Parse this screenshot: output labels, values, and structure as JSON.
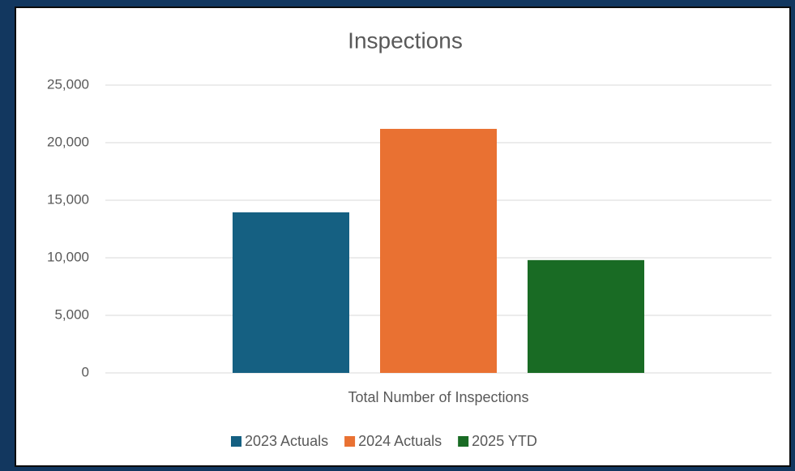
{
  "chart_data": {
    "type": "bar",
    "title": "Inspections",
    "categories": [
      "Total Number of Inspections"
    ],
    "series": [
      {
        "name": "2023 Actuals",
        "color": "#156082",
        "values": [
          13950
        ]
      },
      {
        "name": "2024 Actuals",
        "color": "#e97132",
        "values": [
          21200
        ]
      },
      {
        "name": "2025 YTD",
        "color": "#196b24",
        "values": [
          9800
        ]
      }
    ],
    "ylim": [
      0,
      25000
    ],
    "yticks": [
      0,
      {
        "value": 5000,
        "label": "5,000"
      },
      {
        "value": 10000,
        "label": "10,000"
      },
      {
        "value": 15000,
        "label": "15,000"
      },
      {
        "value": 20000,
        "label": "20,000"
      },
      {
        "value": 25000,
        "label": "25,000"
      }
    ],
    "grid": true,
    "legend": "bottom"
  }
}
